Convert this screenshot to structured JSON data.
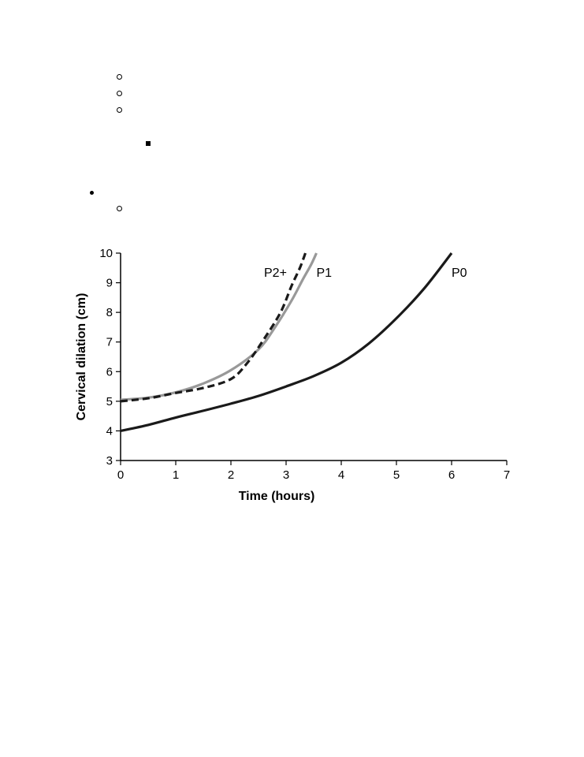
{
  "chart_data": {
    "type": "line",
    "xlabel": "Time (hours)",
    "ylabel": "Cervical dilation (cm)",
    "xlim": [
      0,
      7
    ],
    "ylim": [
      3,
      10
    ],
    "xticks": [
      "0",
      "1",
      "2",
      "3",
      "4",
      "5",
      "6",
      "7"
    ],
    "yticks": [
      "3",
      "4",
      "5",
      "6",
      "7",
      "8",
      "9",
      "10"
    ],
    "grid": false,
    "series": [
      {
        "name": "P0",
        "color": "#1a1a1a",
        "style": "solid",
        "label_at": [
          6.0,
          9.2
        ],
        "x": [
          0,
          0.5,
          1,
          1.5,
          2,
          2.5,
          3,
          3.5,
          4,
          4.5,
          5,
          5.5,
          6
        ],
        "y": [
          4.0,
          4.2,
          4.45,
          4.68,
          4.92,
          5.18,
          5.5,
          5.85,
          6.3,
          6.95,
          7.8,
          8.8,
          10.0
        ]
      },
      {
        "name": "P1",
        "color": "#999999",
        "style": "solid",
        "label_at": [
          3.55,
          9.2
        ],
        "x": [
          0,
          0.5,
          1,
          1.5,
          2,
          2.5,
          2.8,
          3.1,
          3.3,
          3.45,
          3.55
        ],
        "y": [
          5.05,
          5.12,
          5.3,
          5.6,
          6.05,
          6.75,
          7.5,
          8.4,
          9.1,
          9.6,
          10.0
        ]
      },
      {
        "name": "P2+",
        "color": "#1a1a1a",
        "style": "dashed",
        "label_at": [
          2.6,
          9.2
        ],
        "x": [
          0,
          0.5,
          1,
          1.5,
          2,
          2.3,
          2.6,
          2.9,
          3.1,
          3.25,
          3.35
        ],
        "y": [
          5.0,
          5.1,
          5.28,
          5.45,
          5.75,
          6.3,
          7.1,
          8.0,
          8.9,
          9.5,
          10.0
        ]
      }
    ]
  }
}
